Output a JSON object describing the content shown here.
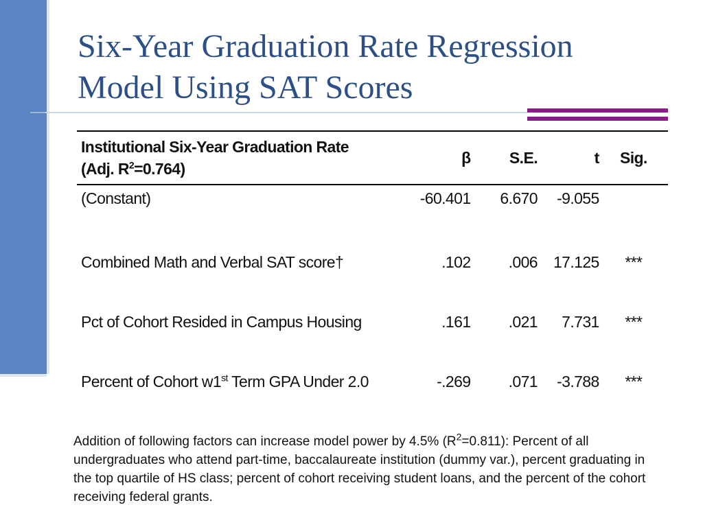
{
  "slide": {
    "title_line1": "Six-Year Graduation Rate Regression",
    "title_line2": "Model Using SAT Scores"
  },
  "table": {
    "header": {
      "label_line1": "Institutional Six-Year Graduation Rate",
      "label_line2_prefix": "(Adj. R",
      "label_line2_sup": "2",
      "label_line2_suffix": "=0.764)",
      "beta": "β",
      "se": "S.E.",
      "t": "t",
      "sig": "Sig."
    },
    "rows": [
      {
        "label": "(Constant)",
        "beta": "-60.401",
        "se": "6.670",
        "t": "-9.055",
        "sig": ""
      },
      {
        "label": "Combined Math and Verbal SAT score†",
        "beta": ".102",
        "se": ".006",
        "t": "17.125",
        "sig": "***"
      },
      {
        "label": "Pct of Cohort Resided in Campus Housing",
        "beta": ".161",
        "se": ".021",
        "t": "7.731",
        "sig": "***"
      },
      {
        "label_prefix": "Percent of Cohort w1",
        "label_sup": "st",
        "label_suffix": " Term GPA Under 2.0",
        "beta": "-.269",
        "se": ".071",
        "t": "-3.788",
        "sig": "***"
      }
    ]
  },
  "note": {
    "prefix": "Addition of following factors can increase model power by 4.5% (R",
    "sup": "2",
    "suffix": "=0.811): Percent of all undergraduates who attend part-time, baccalaureate institution (dummy var.), percent graduating  in the top quartile of HS class; percent of cohort receiving student loans, and the percent of the cohort receiving federal grants."
  },
  "colors": {
    "title": "#2b4f86",
    "left_bar": "#5b84c4",
    "accent_bar": "#8b1a8b"
  }
}
